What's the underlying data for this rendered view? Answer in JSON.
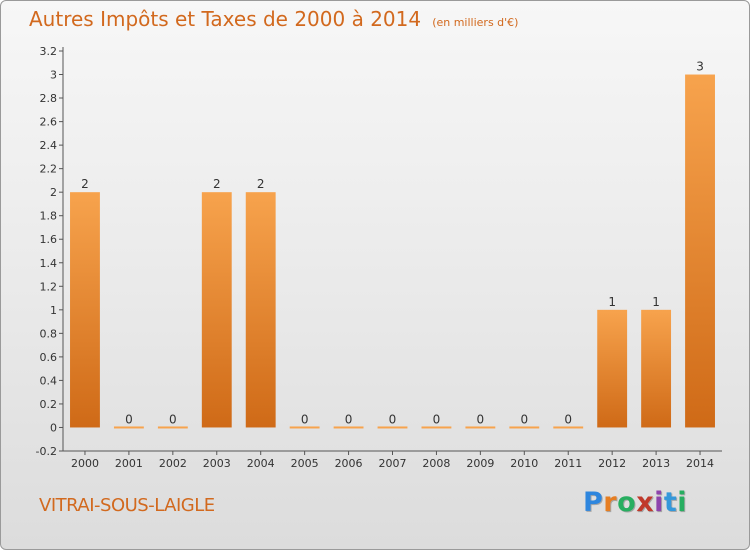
{
  "title": "Autres Impôts et Taxes de 2000 à 2014",
  "unit": "(en milliers d'€)",
  "commune": "VITRAI-SOUS-LAIGLE",
  "logo": {
    "text": "Proxiti",
    "letters": [
      "P",
      "r",
      "o",
      "x",
      "i",
      "t",
      "i"
    ],
    "colors": [
      "#2e86de",
      "#e67e22",
      "#27ae60",
      "#c0392b",
      "#8e44ad",
      "#3498db",
      "#27ae60"
    ]
  },
  "colors": {
    "bar_light": "#f7a34d",
    "bar_dark": "#cf6a17",
    "title": "#d2691e"
  },
  "chart_data": {
    "type": "bar",
    "categories": [
      "2000",
      "2001",
      "2002",
      "2003",
      "2004",
      "2005",
      "2006",
      "2007",
      "2008",
      "2009",
      "2010",
      "2011",
      "2012",
      "2013",
      "2014"
    ],
    "values": [
      2,
      0,
      0,
      2,
      2,
      0,
      0,
      0,
      0,
      0,
      0,
      0,
      1,
      1,
      3
    ],
    "data_labels": [
      "2",
      "0",
      "0",
      "2",
      "2",
      "0",
      "0",
      "0",
      "0",
      "0",
      "0",
      "0",
      "1",
      "1",
      "3"
    ],
    "y_ticks": [
      "-0.2",
      "0",
      "0.2",
      "0.4",
      "0.6",
      "0.8",
      "1",
      "1.2",
      "1.4",
      "1.6",
      "1.8",
      "2",
      "2.2",
      "2.4",
      "2.6",
      "2.8",
      "3",
      "3.2"
    ],
    "ylim": [
      -0.2,
      3.2
    ],
    "xlabel": "",
    "ylabel": "",
    "grid": false,
    "legend": "none"
  }
}
